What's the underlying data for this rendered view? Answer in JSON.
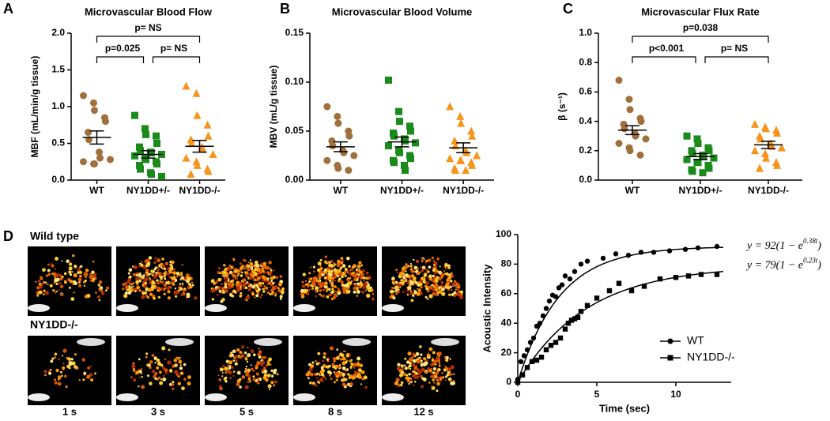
{
  "panel_labels": [
    "A",
    "B",
    "C",
    "D"
  ],
  "chart_data": [
    {
      "type": "dot",
      "title": "Microvascular Blood Flow",
      "ylabel": "MBF (mL/min/g tissue)",
      "categories": [
        "WT",
        "NY1DD+/-",
        "NY1DD-/-"
      ],
      "colors": [
        "#a0703c",
        "#1a8a1a",
        "#f7941d"
      ],
      "markers": [
        "circle",
        "square",
        "triangle"
      ],
      "values": [
        [
          1.15,
          1.05,
          0.95,
          0.85,
          0.8,
          0.65,
          0.55,
          0.38,
          0.3,
          0.28,
          0.25,
          0.22,
          0.22
        ],
        [
          0.88,
          0.7,
          0.62,
          0.6,
          0.5,
          0.45,
          0.4,
          0.38,
          0.37,
          0.35,
          0.33,
          0.3,
          0.28,
          0.25,
          0.22,
          0.2,
          0.15,
          0.1,
          0.08,
          0.05
        ],
        [
          1.28,
          1.18,
          0.88,
          0.75,
          0.6,
          0.55,
          0.5,
          0.45,
          0.42,
          0.35,
          0.3,
          0.25,
          0.2,
          0.15,
          0.12,
          0.08
        ]
      ],
      "means": [
        0.58,
        0.35,
        0.46
      ],
      "sems": [
        0.09,
        0.05,
        0.08
      ],
      "ylim": [
        0,
        2
      ],
      "yticks": [
        {
          "value": 0,
          "label": "0.0"
        },
        0.5,
        {
          "value": 1,
          "label": "1.0"
        },
        1.5,
        {
          "value": 2,
          "label": "2.0"
        }
      ],
      "annotations": [
        {
          "text": "p=0.025",
          "from": 0,
          "to": 1
        },
        {
          "text": "p= NS",
          "from": 1,
          "to": 2
        },
        {
          "text": "p= NS",
          "from": 0,
          "to": 2
        }
      ]
    },
    {
      "type": "dot",
      "title": "Microvascular Blood Volume",
      "ylabel": "MBV (mL/g tissue)",
      "categories": [
        "WT",
        "NY1DD+/-",
        "NY1DD-/-"
      ],
      "colors": [
        "#a0703c",
        "#1a8a1a",
        "#f7941d"
      ],
      "markers": [
        "circle",
        "square",
        "triangle"
      ],
      "values": [
        [
          0.075,
          0.065,
          0.058,
          0.05,
          0.045,
          0.04,
          0.035,
          0.03,
          0.028,
          0.025,
          0.02,
          0.015,
          0.012,
          0.01
        ],
        [
          0.102,
          0.07,
          0.06,
          0.055,
          0.05,
          0.048,
          0.045,
          0.042,
          0.04,
          0.038,
          0.035,
          0.03,
          0.028,
          0.025,
          0.022,
          0.02,
          0.018,
          0.015,
          0.01
        ],
        [
          0.075,
          0.065,
          0.058,
          0.05,
          0.045,
          0.04,
          0.035,
          0.03,
          0.028,
          0.025,
          0.022,
          0.02,
          0.02,
          0.018,
          0.015,
          0.012,
          0.01,
          0.01
        ]
      ],
      "means": [
        0.034,
        0.039,
        0.033
      ],
      "sems": [
        0.005,
        0.005,
        0.005
      ],
      "ylim": [
        0,
        0.15
      ],
      "yticks": [
        {
          "value": 0,
          "label": "0.00"
        },
        {
          "value": 0.05,
          "label": "0.05"
        },
        {
          "value": 0.1,
          "label": "0.10"
        },
        {
          "value": 0.15,
          "label": "0.15"
        }
      ]
    },
    {
      "type": "dot",
      "title": "Microvascular Flux Rate",
      "ylabel": "β (s⁻¹)",
      "categories": [
        "WT",
        "NY1DD+/-",
        "NY1DD-/-"
      ],
      "colors": [
        "#a0703c",
        "#1a8a1a",
        "#f7941d"
      ],
      "markers": [
        "circle",
        "square",
        "triangle"
      ],
      "values": [
        [
          0.68,
          0.55,
          0.48,
          0.42,
          0.4,
          0.38,
          0.35,
          0.32,
          0.3,
          0.28,
          0.25,
          0.22,
          0.2,
          0.17
        ],
        [
          0.3,
          0.28,
          0.25,
          0.22,
          0.2,
          0.2,
          0.18,
          0.17,
          0.16,
          0.15,
          0.14,
          0.12,
          0.12,
          0.1,
          0.08,
          0.07,
          0.06,
          0.05
        ],
        [
          0.38,
          0.36,
          0.35,
          0.34,
          0.32,
          0.3,
          0.28,
          0.25,
          0.23,
          0.22,
          0.2,
          0.18,
          0.15,
          0.12,
          0.1,
          0.08
        ]
      ],
      "means": [
        0.34,
        0.16,
        0.24
      ],
      "sems": [
        0.03,
        0.02,
        0.025
      ],
      "ylim": [
        0,
        1
      ],
      "yticks": [
        {
          "value": 0,
          "label": "0.0"
        },
        0.2,
        0.4,
        0.6,
        0.8,
        {
          "value": 1,
          "label": "1.0"
        }
      ],
      "annotations": [
        {
          "text": "p<0.001",
          "from": 0,
          "to": 1
        },
        {
          "text": "p= NS",
          "from": 1,
          "to": 2
        },
        {
          "text": "p=0.038",
          "from": 0,
          "to": 2
        }
      ]
    },
    {
      "type": "curve",
      "xlabel": "Time (sec)",
      "ylabel": "Acoustic Intensity",
      "xlim": [
        0,
        13.5
      ],
      "xticks": [
        0,
        5,
        10
      ],
      "ylim": [
        0,
        100
      ],
      "yticks": [
        0,
        20,
        40,
        60,
        80,
        100
      ],
      "legend": "lower right",
      "series": [
        {
          "name": "WT",
          "color": "#000000",
          "marker": "circle",
          "x": [
            0,
            0.2,
            0.4,
            0.6,
            0.8,
            1.0,
            1.2,
            1.4,
            1.6,
            1.8,
            2.0,
            2.2,
            2.4,
            2.6,
            2.8,
            3.0,
            3.3,
            3.6,
            4.0,
            4.4,
            5.4,
            6.2,
            7.0,
            7.8,
            8.6,
            9.6,
            10.6,
            11.4,
            12.6
          ],
          "values": [
            2,
            14,
            18,
            22,
            27,
            30,
            38,
            40,
            45,
            50,
            55,
            59,
            58,
            64,
            66,
            72,
            70,
            75,
            80,
            82,
            84,
            87,
            86,
            88,
            88,
            89,
            90,
            91,
            92
          ],
          "fit": {
            "amplitude": 92,
            "rate": 0.38
          },
          "equation": [
            "y = 92(1 − e",
            "0.38t",
            ")"
          ]
        },
        {
          "name": "NY1DD-/-",
          "color": "#000000",
          "marker": "square",
          "x": [
            0,
            0.3,
            0.6,
            0.9,
            1.2,
            1.5,
            1.8,
            2.1,
            2.4,
            2.7,
            3.0,
            3.2,
            3.4,
            3.6,
            3.8,
            4.0,
            4.4,
            5.0,
            5.8,
            6.4,
            7.2,
            8.0,
            9.0,
            10.0,
            10.8,
            11.6,
            12.6
          ],
          "values": [
            0,
            5,
            10,
            14,
            15,
            17,
            22,
            25,
            27,
            30,
            36,
            40,
            42,
            43,
            44,
            48,
            52,
            57,
            62,
            67,
            62,
            65,
            70,
            71,
            72,
            73,
            73
          ],
          "fit": {
            "amplitude": 79,
            "rate": 0.23
          },
          "equation": [
            "y = 79(1 − e",
            "0.23t",
            ")"
          ]
        }
      ]
    }
  ],
  "images": {
    "rows": [
      "Wild type",
      "NY1DD-/-"
    ],
    "times": [
      "1 s",
      "3 s",
      "5 s",
      "8 s",
      "12 s"
    ]
  }
}
